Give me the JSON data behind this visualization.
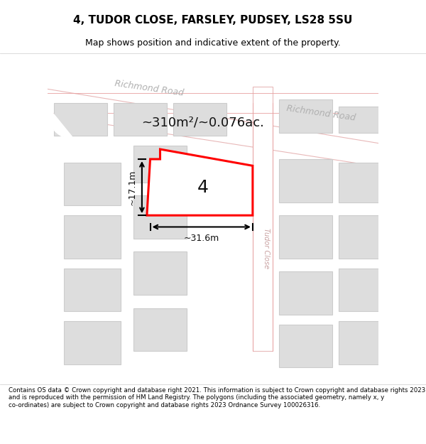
{
  "title": "4, TUDOR CLOSE, FARSLEY, PUDSEY, LS28 5SU",
  "subtitle": "Map shows position and indicative extent of the property.",
  "footer": "Contains OS data © Crown copyright and database right 2021. This information is subject to Crown copyright and database rights 2023 and is reproduced with the permission of HM Land Registry. The polygons (including the associated geometry, namely x, y co-ordinates) are subject to Crown copyright and database rights 2023 Ordnance Survey 100026316.",
  "bg_color": "#f5f5f0",
  "road_color": "#ffffff",
  "road_stroke": "#e8c8c8",
  "building_fill": "#dddddd",
  "building_stroke": "#cccccc",
  "highlight_fill": "#ffffff",
  "highlight_stroke": "#ff0000",
  "road_label_color": "#aaaaaa",
  "annotation_color": "#111111",
  "area_text": "~310m²/~0.076ac.",
  "width_text": "~31.6m",
  "height_text": "~17.1m",
  "plot_number": "4"
}
